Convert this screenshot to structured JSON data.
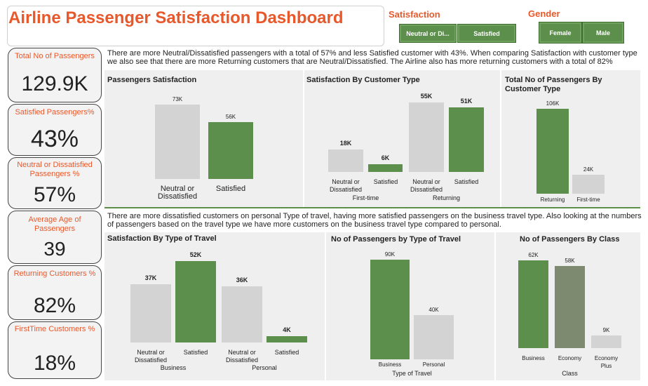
{
  "header": {
    "title": "Airline Passenger Satisfaction Dashboard"
  },
  "slicers": {
    "satisfaction": {
      "label": "Satisfaction",
      "options": [
        "Neutral or Di...",
        "Satisfied"
      ]
    },
    "gender": {
      "label": "Gender",
      "options": [
        "Female",
        "Male"
      ]
    }
  },
  "kpis": [
    {
      "label": "Total No of Passengers",
      "value": "129.9K"
    },
    {
      "label": "Satisfied Passengers%",
      "value": "43%"
    },
    {
      "label": "Neutral or Dissatisfied Passengers %",
      "value": "57%"
    },
    {
      "label": "Average Age of Passengers",
      "value": "39"
    },
    {
      "label": "Returning Customers %",
      "value": "82%"
    },
    {
      "label": "FirstTime Customers %",
      "value": "18%"
    }
  ],
  "insights": {
    "top": "There are more Neutral/Dissatisfied passengers with a total of 57%  and less Satisfied customer with 43%.  When comparing Satisfaction with customer type we also see that there are more Returning customers that are Neutral/Dissatisfied. The Airline also has more returning customers with a total of 82%",
    "bottom": "There are more dissatisfied customers on personal Type of travel, having more satisfied passengers on the business travel type. Also looking at the numbers of passengers based on the travel type we have more customers on the business travel type compared to personal."
  },
  "colors": {
    "accent": "#e8582b",
    "green": "#5b8f4b",
    "grey": "#d3d3d3",
    "olive": "#7d8a6f"
  },
  "chart_data": [
    {
      "id": "passengers_satisfaction",
      "type": "bar",
      "title": "Passengers Satisfaction",
      "categories": [
        "Neutral or Dissatisfied",
        "Satisfied"
      ],
      "category_lines": [
        [
          "Neutral or",
          "Dissatisfied"
        ],
        [
          "Satisfied"
        ]
      ],
      "values": [
        73,
        56
      ],
      "data_labels": [
        "73K",
        "56K"
      ]
    },
    {
      "id": "satisfaction_by_customer_type",
      "type": "bar",
      "title": "Satisfaction By Customer Type",
      "groups": [
        "First-time",
        "Returning"
      ],
      "sub_categories": [
        "Neutral or Dissatisfied",
        "Satisfied"
      ],
      "sub_lines": [
        [
          "Neutral or",
          "Dissatisfied"
        ],
        [
          "Satisfied"
        ]
      ],
      "series": [
        {
          "name": "Neutral or Dissatisfied",
          "values": [
            18,
            55
          ]
        },
        {
          "name": "Satisfied",
          "values": [
            6,
            51
          ]
        }
      ],
      "data_labels": [
        [
          "18K",
          "6K"
        ],
        [
          "55K",
          "51K"
        ]
      ]
    },
    {
      "id": "passengers_by_customer_type",
      "type": "bar",
      "title": "Total No of Passengers By Customer Type",
      "categories": [
        "Returning",
        "First-time"
      ],
      "values": [
        106,
        24
      ],
      "data_labels": [
        "106K",
        "24K"
      ]
    },
    {
      "id": "satisfaction_by_type_of_travel",
      "type": "bar",
      "title": "Satisfaction By Type of Travel",
      "groups": [
        "Business",
        "Personal"
      ],
      "sub_categories": [
        "Neutral or Dissatisfied",
        "Satisfied"
      ],
      "sub_lines": [
        [
          "Neutral or",
          "Dissatisfied"
        ],
        [
          "Satisfied"
        ]
      ],
      "series": [
        {
          "name": "Neutral or Dissatisfied",
          "values": [
            37,
            36
          ]
        },
        {
          "name": "Satisfied",
          "values": [
            52,
            4
          ]
        }
      ],
      "data_labels": [
        [
          "37K",
          "52K"
        ],
        [
          "36K",
          "4K"
        ]
      ]
    },
    {
      "id": "passengers_by_type_of_travel",
      "type": "bar",
      "title": "No of Passengers by Type of Travel",
      "categories": [
        "Business",
        "Personal"
      ],
      "values": [
        90,
        40
      ],
      "data_labels": [
        "90K",
        "40K"
      ],
      "xlabel": "Type of Travel"
    },
    {
      "id": "passengers_by_class",
      "type": "bar",
      "title": "No of Passengers By Class",
      "categories": [
        "Business",
        "Economy",
        "Economy Plus"
      ],
      "category_lines": [
        [
          "Business"
        ],
        [
          "Economy"
        ],
        [
          "Economy",
          "Plus"
        ]
      ],
      "values": [
        62,
        58,
        9
      ],
      "data_labels": [
        "62K",
        "58K",
        "9K"
      ],
      "xlabel": "Class"
    }
  ]
}
